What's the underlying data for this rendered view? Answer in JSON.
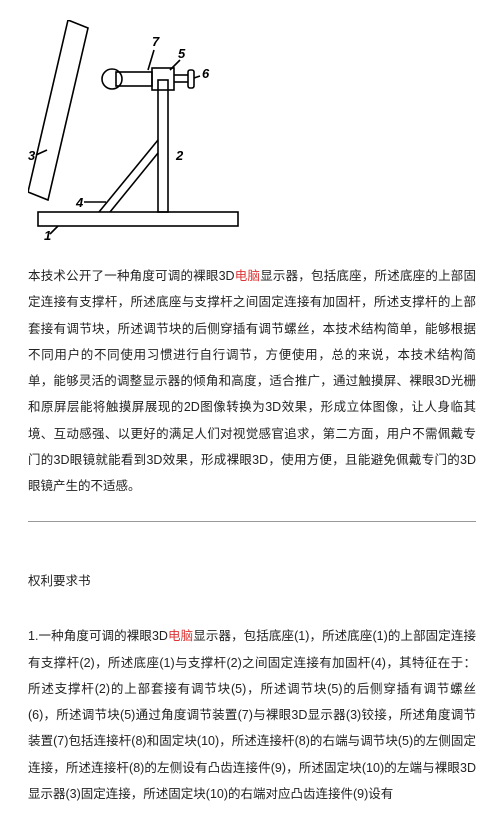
{
  "diagram": {
    "labels": [
      "1",
      "2",
      "3",
      "4",
      "5",
      "6",
      "7"
    ],
    "stroke": "#000000",
    "stroke_width": 1.6,
    "font_size": 13,
    "font_weight": "bold"
  },
  "abstract": {
    "font_size": 12.5,
    "color": "#222222",
    "highlight_color": "#dd3333",
    "parts": [
      {
        "t": "本技术公开了一种角度可调的裸眼3D",
        "hl": false
      },
      {
        "t": "电脑",
        "hl": true
      },
      {
        "t": "显示器，包括底座，所述底座的上部固定连接有支撑杆，所述底座与支撑杆之间固定连接有加固杆，所述支撑杆的上部套接有调节块，所述调节块的后侧穿插有调节螺丝，本技术结构简单，能够根据不同用户的不同使用习惯进行自行调节，方便使用，总的来说，本技术结构简单，能够灵活的调整显示器的倾角和高度，适合推广，通过触摸屏、裸眼3D光栅和原屏层能将触摸屏展现的2D图像转换为3D效果，形成立体图像，让人身临其境、互动感强、以更好的满足人们对视觉感官追求，第二方面，用户不需佩戴专门的3D眼镜就能看到3D效果，形成裸眼3D，使用方便，且能避免佩戴专门的3D眼镜产生的不适感。",
        "hl": false
      }
    ]
  },
  "claims": {
    "title": "权利要求书",
    "title_font_size": 12.5,
    "font_size": 12.5,
    "color": "#222222",
    "highlight_color": "#dd3333",
    "parts": [
      {
        "t": "1.一种角度可调的裸眼3D",
        "hl": false
      },
      {
        "t": "电脑",
        "hl": true
      },
      {
        "t": "显示器，包括底座(1)，所述底座(1)的上部固定连接有支撑杆(2)，所述底座(1)与支撑杆(2)之间固定连接有加固杆(4)，其特征在于：所述支撑杆(2)的上部套接有调节块(5)，所述调节块(5)的后侧穿插有调节螺丝(6)，所述调节块(5)通过角度调节装置(7)与裸眼3D显示器(3)铰接，所述角度调节装置(7)包括连接杆(8)和固定块(10)，所述连接杆(8)的右端与调节块(5)的左侧固定连接，所述连接杆(8)的左侧设有凸齿连接件(9)，所述固定块(10)的左端与裸眼3D显示器(3)固定连接，所述固定块(10)的右端对应凸齿连接件(9)设有",
        "hl": false
      }
    ]
  }
}
